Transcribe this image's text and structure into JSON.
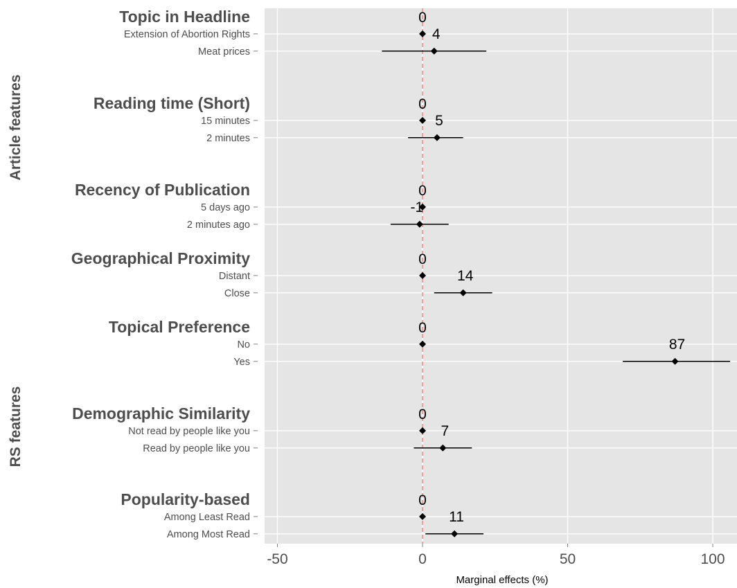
{
  "chart_data": {
    "type": "scatter",
    "subtype": "coefficient-plot",
    "xlabel": "Marginal effects (%)",
    "xlim": [
      -55,
      108
    ],
    "xticks": [
      -50,
      0,
      50,
      100
    ],
    "reference_line": {
      "x": 0,
      "color": "#f08070",
      "style": "dashed"
    },
    "grid": true,
    "colors": {
      "panel_bg": "#e5e5e5",
      "grid": "#ffffff",
      "point": "#000000",
      "reference": "#f08070",
      "text": "#4d4d4d"
    },
    "sections": [
      {
        "label": "Article features",
        "groups": [
          "Topic in Headline",
          "Reading time (Short)",
          "Recency of Publication",
          "Geographical Proximity"
        ]
      },
      {
        "label": "RS features",
        "groups": [
          "Topical Preference",
          "Demographic Similarity",
          "Popularity-based"
        ]
      }
    ],
    "groups": [
      {
        "title": "Topic in Headline",
        "baseline_value": 0,
        "levels": [
          {
            "label": "Extension of Abortion Rights",
            "value": 0,
            "ci": null
          },
          {
            "label": "Meat prices",
            "value": 4,
            "ci": [
              -14,
              22
            ]
          }
        ]
      },
      {
        "title": "Reading time (Short)",
        "baseline_value": 0,
        "levels": [
          {
            "label": "15 minutes",
            "value": 0,
            "ci": null
          },
          {
            "label": "2 minutes",
            "value": 5,
            "ci": [
              -5,
              14
            ]
          }
        ]
      },
      {
        "title": "Recency of Publication",
        "baseline_value": 0,
        "levels": [
          {
            "label": "5 days ago",
            "value": 0,
            "ci": null
          },
          {
            "label": "2 minutes ago",
            "value": -1,
            "ci": [
              -11,
              9
            ]
          }
        ]
      },
      {
        "title": "Geographical Proximity",
        "baseline_value": 0,
        "levels": [
          {
            "label": "Distant",
            "value": 0,
            "ci": null
          },
          {
            "label": "Close",
            "value": 14,
            "ci": [
              4,
              24
            ]
          }
        ]
      },
      {
        "title": "Topical Preference",
        "baseline_value": 0,
        "levels": [
          {
            "label": "No",
            "value": 0,
            "ci": null
          },
          {
            "label": "Yes",
            "value": 87,
            "ci": [
              69,
              106
            ]
          }
        ]
      },
      {
        "title": "Demographic Similarity",
        "baseline_value": 0,
        "levels": [
          {
            "label": "Not read by people like you",
            "value": 0,
            "ci": null
          },
          {
            "label": "Read by people like you",
            "value": 7,
            "ci": [
              -3,
              17
            ]
          }
        ]
      },
      {
        "title": "Popularity-based",
        "baseline_value": 0,
        "levels": [
          {
            "label": "Among Least Read",
            "value": 0,
            "ci": null
          },
          {
            "label": "Among Most Read",
            "value": 11,
            "ci": [
              1,
              21
            ]
          }
        ]
      }
    ]
  }
}
